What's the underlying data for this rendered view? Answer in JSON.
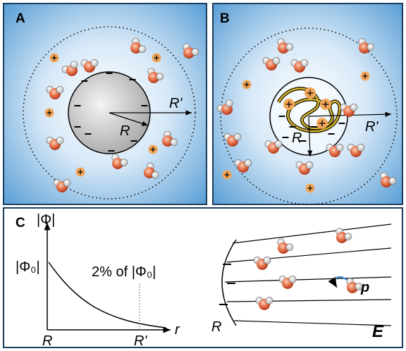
{
  "panels": [
    {
      "label": "A",
      "outer_radius": "R'",
      "inner_radius": "R"
    },
    {
      "label": "B",
      "inner_radius": "R",
      "outer_radius": "R'"
    },
    {
      "label": "C",
      "y_axis": "|Φ|",
      "surface_potential": "|Φ₀|",
      "threshold": "2% of |Φ₀|",
      "x_start": "R",
      "x_end": "R'",
      "x_axis": "r",
      "surface": "R",
      "field": "E",
      "dipole": "p"
    }
  ]
}
